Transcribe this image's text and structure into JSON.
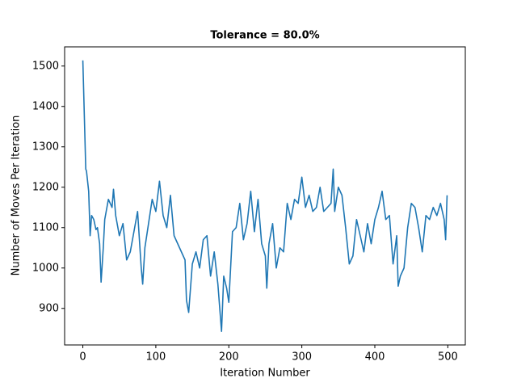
{
  "chart_data": {
    "type": "line",
    "title": "Tolerance = 80.0%",
    "x_label": "Iteration Number",
    "y_label": "Number of Moves Per Iteration",
    "color": "#1f77b4",
    "x": [
      0,
      2,
      4,
      5,
      8,
      10,
      12,
      15,
      18,
      20,
      23,
      25,
      28,
      30,
      35,
      40,
      42,
      45,
      50,
      55,
      60,
      65,
      70,
      75,
      80,
      82,
      85,
      90,
      95,
      100,
      105,
      110,
      115,
      120,
      125,
      130,
      135,
      140,
      142,
      145,
      150,
      155,
      160,
      165,
      170,
      175,
      180,
      185,
      190,
      193,
      197,
      200,
      205,
      210,
      215,
      220,
      225,
      230,
      235,
      240,
      245,
      250,
      252,
      255,
      260,
      265,
      270,
      275,
      280,
      285,
      290,
      295,
      300,
      305,
      310,
      315,
      320,
      325,
      330,
      335,
      340,
      343,
      345,
      350,
      355,
      360,
      365,
      370,
      375,
      380,
      385,
      390,
      395,
      400,
      405,
      410,
      415,
      420,
      425,
      430,
      432,
      435,
      440,
      445,
      450,
      455,
      460,
      465,
      470,
      475,
      480,
      485,
      490,
      495,
      497,
      499
    ],
    "values": [
      1514,
      1380,
      1245,
      1240,
      1190,
      1080,
      1130,
      1120,
      1095,
      1100,
      1060,
      965,
      1050,
      1120,
      1170,
      1150,
      1195,
      1130,
      1080,
      1110,
      1020,
      1040,
      1090,
      1140,
      1000,
      960,
      1050,
      1110,
      1170,
      1140,
      1215,
      1130,
      1100,
      1180,
      1080,
      1060,
      1040,
      1020,
      920,
      890,
      1010,
      1040,
      1000,
      1070,
      1080,
      980,
      1040,
      960,
      843,
      980,
      950,
      915,
      1090,
      1100,
      1160,
      1070,
      1110,
      1190,
      1090,
      1170,
      1060,
      1030,
      950,
      1060,
      1110,
      1000,
      1050,
      1040,
      1160,
      1120,
      1170,
      1160,
      1225,
      1150,
      1180,
      1140,
      1150,
      1200,
      1140,
      1150,
      1160,
      1245,
      1140,
      1200,
      1180,
      1100,
      1010,
      1030,
      1120,
      1080,
      1040,
      1110,
      1060,
      1120,
      1150,
      1190,
      1120,
      1130,
      1010,
      1080,
      955,
      980,
      1000,
      1100,
      1160,
      1150,
      1100,
      1040,
      1130,
      1120,
      1150,
      1130,
      1160,
      1120,
      1070,
      1180
    ],
    "xlim": [
      -24.95,
      523.95
    ],
    "xticks": [
      0,
      100,
      200,
      300,
      400,
      500
    ],
    "ylim": [
      809.5,
      1547.5
    ],
    "yticks": [
      900,
      1000,
      1100,
      1200,
      1300,
      1400,
      1500
    ]
  }
}
